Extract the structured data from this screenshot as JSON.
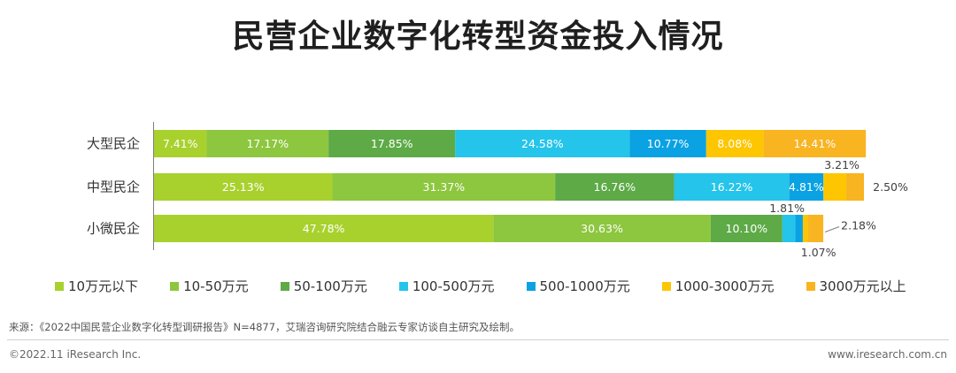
{
  "title": "民营企业数字化转型资金投入情况",
  "chart_data": {
    "type": "bar",
    "orientation": "horizontal",
    "stacked": true,
    "categories": [
      "大型民企",
      "中型民企",
      "小微民企"
    ],
    "series": [
      {
        "name": "10万元以下",
        "color": "#a8d12e",
        "values": [
          7.41,
          25.13,
          47.78
        ]
      },
      {
        "name": "10-50万元",
        "color": "#8dc63f",
        "values": [
          17.17,
          31.37,
          30.63
        ]
      },
      {
        "name": "50-100万元",
        "color": "#5daa47",
        "values": [
          17.85,
          16.76,
          10.1
        ]
      },
      {
        "name": "100-500万元",
        "color": "#25c4ea",
        "values": [
          24.58,
          16.22,
          1.81
        ]
      },
      {
        "name": "500-1000万元",
        "color": "#0aa2e3",
        "values": [
          10.77,
          4.81,
          1.07
        ]
      },
      {
        "name": "1000-3000万元",
        "color": "#fdc600",
        "values": [
          8.08,
          3.21,
          0.7
        ]
      },
      {
        "name": "3000万元以上",
        "color": "#f8b421",
        "values": [
          14.41,
          2.5,
          2.18
        ]
      }
    ],
    "data_labels": [
      [
        "7.41%",
        "17.17%",
        "17.85%",
        "24.58%",
        "10.77%",
        "8.08%",
        "14.41%"
      ],
      [
        "25.13%",
        "31.37%",
        "16.76%",
        "16.22%",
        "4.81%",
        "3.21%",
        "2.50%"
      ],
      [
        "47.78%",
        "30.63%",
        "10.10%",
        "1.81%",
        "1.07%",
        "",
        "2.18%"
      ]
    ],
    "xlim": [
      0,
      100
    ],
    "legend_position": "bottom"
  },
  "footer": {
    "source": "来源：《2022中国民营企业数字化转型调研报告》N=4877，艾瑞咨询研究院结合融云专家访谈自主研究及绘制。",
    "copyright": "©2022.11 iResearch Inc.",
    "website": "www.iresearch.com.cn"
  }
}
